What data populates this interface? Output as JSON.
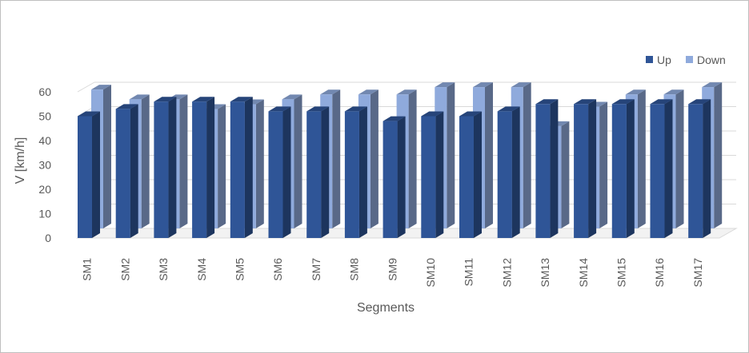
{
  "chart_data": {
    "type": "bar",
    "subtype": "3d-clustered-column",
    "title": "",
    "xlabel": "Segments",
    "ylabel": "V [km/h]",
    "ylim": [
      0,
      60
    ],
    "yticks": [
      0,
      10,
      20,
      30,
      40,
      50,
      60
    ],
    "grid": true,
    "legend_position": "top-right",
    "categories": [
      "SM1",
      "SM2",
      "SM3",
      "SM4",
      "SM5",
      "SM6",
      "SM7",
      "SM8",
      "SM9",
      "SM10",
      "SM11",
      "SM12",
      "SM13",
      "SM14",
      "SM15",
      "SM16",
      "SM17"
    ],
    "series": [
      {
        "name": "Up",
        "color": "#2f5597",
        "values": [
          50,
          53,
          56,
          56,
          56,
          52,
          52,
          52,
          48,
          50,
          50,
          52,
          55,
          55,
          55,
          55,
          55
        ]
      },
      {
        "name": "Down",
        "color": "#8faadc",
        "values": [
          57,
          53,
          53,
          49,
          51,
          53,
          55,
          55,
          55,
          58,
          58,
          58,
          42,
          50,
          55,
          55,
          58
        ]
      }
    ]
  }
}
